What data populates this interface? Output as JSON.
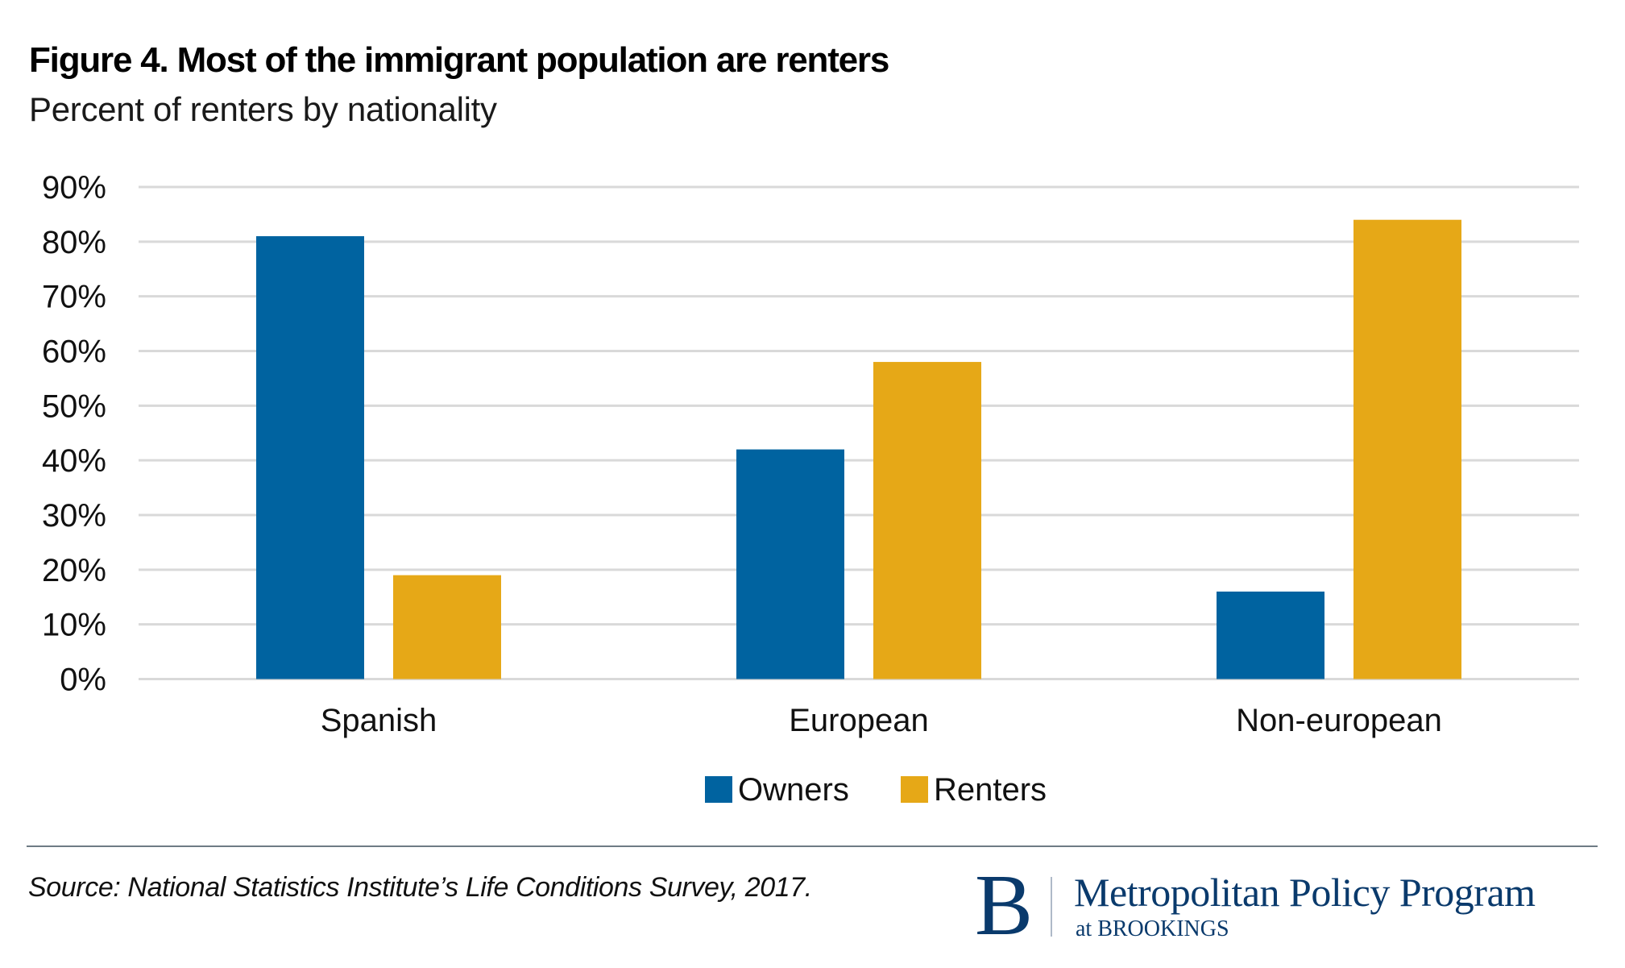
{
  "header": {
    "title": "Figure 4. Most of the immigrant population are renters",
    "subtitle": "Percent of renters by nationality"
  },
  "chart_data": {
    "type": "bar",
    "title": "Figure 4. Most of the immigrant population are renters",
    "subtitle": "Percent of renters by nationality",
    "xlabel": "",
    "ylabel": "",
    "categories": [
      "Spanish",
      "European",
      "Non-european"
    ],
    "series": [
      {
        "name": "Owners",
        "color": "#0063a0",
        "values": [
          81,
          42,
          16
        ]
      },
      {
        "name": "Renters",
        "color": "#e6a817",
        "values": [
          19,
          58,
          84
        ]
      }
    ],
    "ylim": [
      0,
      90
    ],
    "yticks": [
      0,
      10,
      20,
      30,
      40,
      50,
      60,
      70,
      80,
      90
    ],
    "ytick_labels": [
      "0%",
      "10%",
      "20%",
      "30%",
      "40%",
      "50%",
      "60%",
      "70%",
      "80%",
      "90%"
    ],
    "grid": true,
    "gridline_color": "#d9d9d9",
    "legend": {
      "position": "bottom-center",
      "entries": [
        "Owners",
        "Renters"
      ]
    }
  },
  "footer": {
    "source": "Source: National Statistics Institute’s Life Conditions Survey, 2017.",
    "logo": {
      "letter": "B",
      "name": "Metropolitan Policy Program",
      "sub": "at BROOKINGS",
      "color": "#0a3a6c"
    }
  }
}
